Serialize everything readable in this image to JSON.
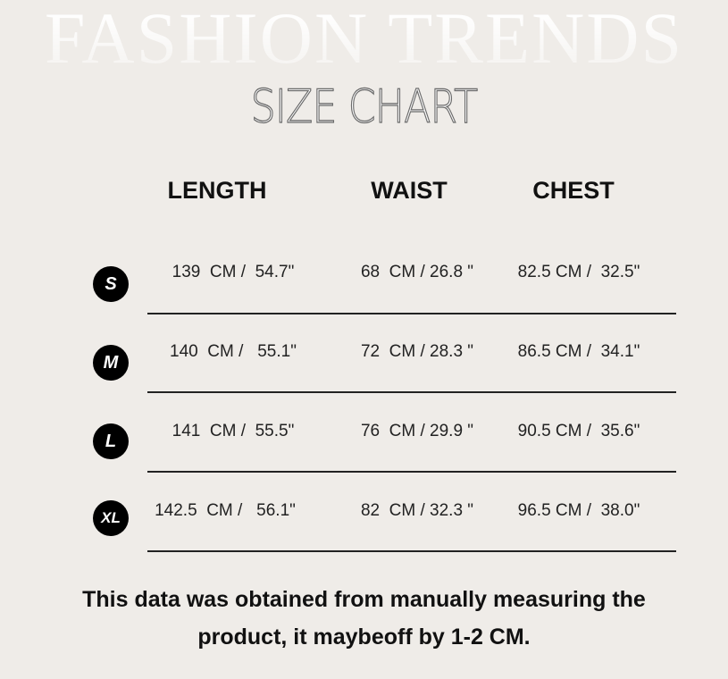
{
  "background_title": "FASHION TRENDS",
  "title": "SIZE CHART",
  "headers": [
    "LENGTH",
    "WAIST",
    "CHEST"
  ],
  "rows": [
    {
      "size": "S",
      "length": "139  CM /  54.7\"",
      "waist": "68  CM / 26.8 \"",
      "chest": "82.5 CM /  32.5\""
    },
    {
      "size": "M",
      "length": "140  CM /   55.1\"",
      "waist": "72  CM / 28.3 \"",
      "chest": "86.5 CM /  34.1\""
    },
    {
      "size": "L",
      "length": "141  CM /  55.5\"",
      "waist": "76  CM / 29.9 \"",
      "chest": "90.5 CM /  35.6\""
    },
    {
      "size": "XL",
      "length": "142.5  CM /   56.1\"",
      "waist": "82  CM / 32.3 \"",
      "chest": "96.5 CM /  38.0\""
    }
  ],
  "note_line1": "This data was obtained from manually measuring the",
  "note_line2": "product, it maybeoff by 1-2 CM.",
  "colors": {
    "background": "#efece8",
    "badge": "#000000"
  }
}
